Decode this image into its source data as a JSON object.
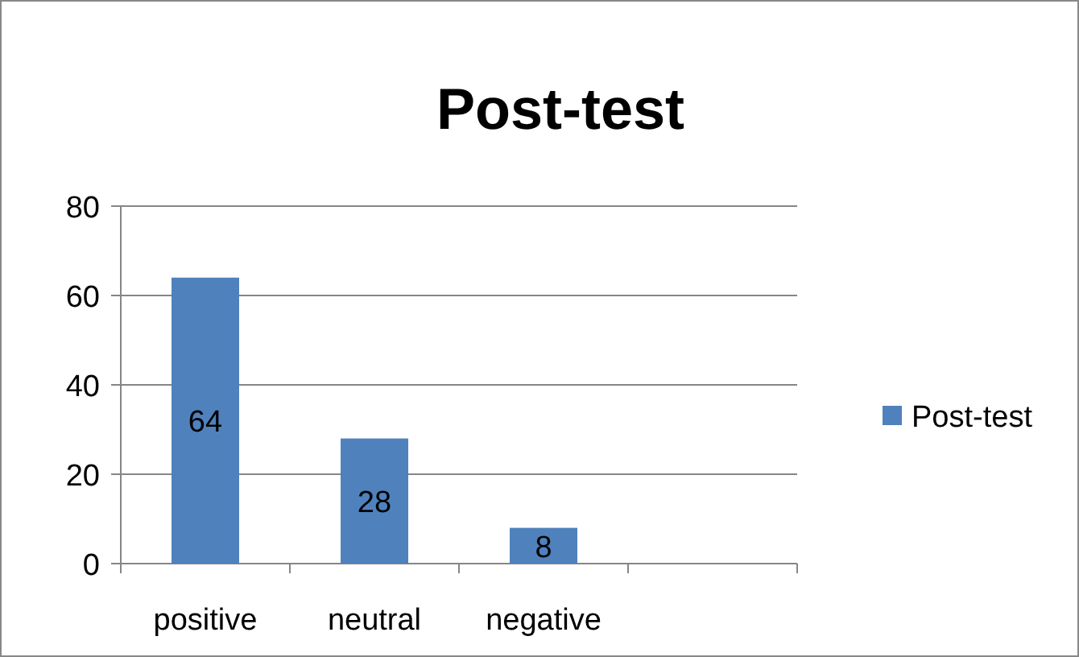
{
  "chart_data": {
    "type": "bar",
    "title": "Post-test",
    "categories": [
      "positive",
      "neutral",
      "negative",
      null
    ],
    "series": [
      {
        "name": "Post-test",
        "color": "#4f81bd",
        "values": [
          64,
          28,
          8,
          null
        ]
      }
    ],
    "ylim": [
      0,
      80
    ],
    "yticks": [
      0,
      20,
      40,
      60,
      80
    ],
    "grid": "y",
    "legend": "right",
    "data_labels": true
  }
}
